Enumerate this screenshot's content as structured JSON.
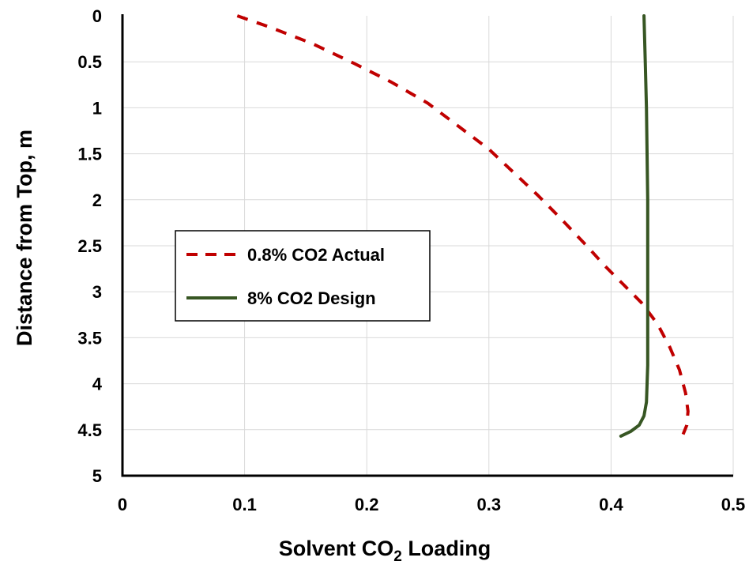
{
  "chart_data": {
    "type": "line",
    "xlabel_main": "Solvent CO",
    "xlabel_sub": "2",
    "xlabel_tail": " Loading",
    "ylabel": "Distance from Top, m",
    "xlim": [
      0,
      0.5
    ],
    "ylim": [
      0,
      5
    ],
    "y_inverted": true,
    "x_ticks": [
      "0",
      "0.1",
      "0.2",
      "0.3",
      "0.4",
      "0.5"
    ],
    "y_ticks": [
      "0",
      "0.5",
      "1",
      "1.5",
      "2",
      "2.5",
      "3",
      "3.5",
      "4",
      "4.5",
      "5"
    ],
    "grid": true,
    "legend_position": "middle-left",
    "series": [
      {
        "name": "0.8% CO2 Actual",
        "color": "#c00000",
        "style": "dashed",
        "points": [
          [
            0.094,
            0.0
          ],
          [
            0.12,
            0.12
          ],
          [
            0.155,
            0.3
          ],
          [
            0.19,
            0.52
          ],
          [
            0.22,
            0.72
          ],
          [
            0.25,
            0.95
          ],
          [
            0.275,
            1.2
          ],
          [
            0.3,
            1.45
          ],
          [
            0.32,
            1.7
          ],
          [
            0.34,
            1.95
          ],
          [
            0.36,
            2.22
          ],
          [
            0.38,
            2.5
          ],
          [
            0.395,
            2.72
          ],
          [
            0.41,
            2.92
          ],
          [
            0.425,
            3.12
          ],
          [
            0.438,
            3.35
          ],
          [
            0.448,
            3.6
          ],
          [
            0.456,
            3.85
          ],
          [
            0.461,
            4.1
          ],
          [
            0.463,
            4.3
          ],
          [
            0.462,
            4.45
          ],
          [
            0.459,
            4.55
          ]
        ]
      },
      {
        "name": "8% CO2 Design",
        "color": "#375623",
        "style": "solid",
        "points": [
          [
            0.427,
            0.0
          ],
          [
            0.428,
            0.5
          ],
          [
            0.429,
            1.0
          ],
          [
            0.43,
            2.0
          ],
          [
            0.43,
            3.0
          ],
          [
            0.43,
            3.8
          ],
          [
            0.429,
            4.2
          ],
          [
            0.427,
            4.35
          ],
          [
            0.423,
            4.45
          ],
          [
            0.416,
            4.52
          ],
          [
            0.408,
            4.57
          ]
        ]
      }
    ]
  }
}
